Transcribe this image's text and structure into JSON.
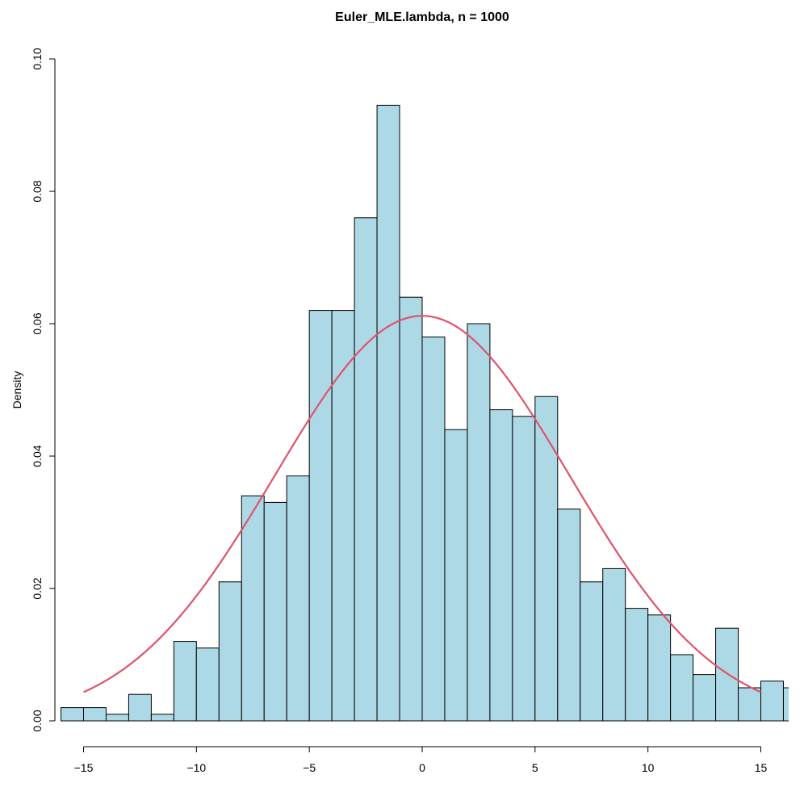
{
  "chart_data": {
    "type": "bar",
    "subtype": "histogram",
    "title": "Euler_MLE.lambda, n = 1000",
    "xlabel": "",
    "ylabel": "Density",
    "xlim": [
      -16,
      16.2
    ],
    "ylim": [
      0,
      0.1
    ],
    "grid": false,
    "bin_width": 1,
    "bin_starts": [
      -16,
      -15,
      -14,
      -13,
      -12,
      -11,
      -10,
      -9,
      -8,
      -7,
      -6,
      -5,
      -4,
      -3,
      -2,
      -1,
      0,
      1,
      2,
      3,
      4,
      5,
      6,
      7,
      8,
      9,
      10,
      11,
      12,
      13,
      14,
      15,
      16
    ],
    "values": [
      0.002,
      0.002,
      0.001,
      0.004,
      0.001,
      0.012,
      0.011,
      0.021,
      0.034,
      0.033,
      0.037,
      0.062,
      0.062,
      0.076,
      0.093,
      0.064,
      0.058,
      0.044,
      0.06,
      0.047,
      0.046,
      0.049,
      0.032,
      0.021,
      0.023,
      0.017,
      0.016,
      0.01,
      0.007,
      0.014,
      0.005,
      0.006,
      0.005
    ],
    "xticks": [
      -15,
      -10,
      -5,
      0,
      5,
      10,
      15
    ],
    "xtick_labels": [
      "−15",
      "−10",
      "−5",
      "0",
      "5",
      "10",
      "15"
    ],
    "yticks": [
      0,
      0.02,
      0.04,
      0.06,
      0.08,
      0.1
    ],
    "ytick_labels": [
      "0.00",
      "0.02",
      "0.04",
      "0.06",
      "0.08",
      "0.10"
    ],
    "overlay": {
      "type": "normal-density-line",
      "mean": 0,
      "sd": 6.52,
      "x_range": [
        -15,
        15
      ]
    },
    "colors": {
      "bar_fill": "#ADD8E6",
      "bar_stroke": "#000000",
      "curve": "#DF536B"
    }
  }
}
